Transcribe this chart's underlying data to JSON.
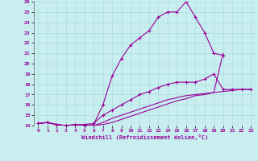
{
  "background_color": "#c8eef0",
  "line_color": "#990099",
  "grid_color": "#aadddd",
  "xlabel": "Windchill (Refroidissement éolien,°C)",
  "xlim": [
    -0.5,
    23.5
  ],
  "ylim": [
    14,
    26
  ],
  "yticks": [
    14,
    15,
    16,
    17,
    18,
    19,
    20,
    21,
    22,
    23,
    24,
    25,
    26
  ],
  "xticks": [
    0,
    1,
    2,
    3,
    4,
    5,
    6,
    7,
    8,
    9,
    10,
    11,
    12,
    13,
    14,
    15,
    16,
    17,
    18,
    19,
    20,
    21,
    22,
    23
  ],
  "series": [
    {
      "x": [
        0,
        1,
        2,
        3,
        4,
        5,
        6,
        7,
        8,
        9,
        10,
        11,
        12,
        13,
        14,
        15,
        16,
        17,
        18,
        19,
        20
      ],
      "y": [
        14.2,
        14.3,
        14.1,
        14.0,
        14.1,
        14.0,
        14.1,
        16.0,
        18.8,
        20.5,
        21.8,
        22.5,
        23.2,
        24.5,
        25.0,
        25.0,
        26.0,
        24.5,
        23.0,
        21.0,
        20.8
      ],
      "markers": true
    },
    {
      "x": [
        0,
        1,
        2,
        3,
        4,
        5,
        6,
        7,
        8,
        9,
        10,
        11,
        12,
        13,
        14,
        15,
        16,
        17,
        18,
        19,
        20,
        21,
        22,
        23
      ],
      "y": [
        14.2,
        14.3,
        14.1,
        14.0,
        14.1,
        14.1,
        14.2,
        15.0,
        15.5,
        16.0,
        16.5,
        17.0,
        17.3,
        17.7,
        18.0,
        18.2,
        18.2,
        18.2,
        18.5,
        19.0,
        17.5,
        17.5,
        17.5,
        17.5
      ],
      "markers": true
    },
    {
      "x": [
        0,
        1,
        2,
        3,
        4,
        5,
        6,
        7,
        8,
        9,
        10,
        11,
        12,
        13,
        14,
        15,
        16,
        17,
        18,
        19,
        20
      ],
      "y": [
        14.2,
        14.3,
        14.1,
        14.0,
        14.0,
        14.0,
        14.0,
        14.3,
        14.7,
        15.0,
        15.3,
        15.6,
        15.9,
        16.2,
        16.5,
        16.7,
        16.9,
        17.0,
        17.1,
        17.2,
        21.0
      ],
      "markers": false
    },
    {
      "x": [
        0,
        1,
        2,
        3,
        4,
        5,
        6,
        7,
        8,
        9,
        10,
        11,
        12,
        13,
        14,
        15,
        16,
        17,
        18,
        19,
        20,
        21,
        22,
        23
      ],
      "y": [
        14.2,
        14.3,
        14.1,
        14.0,
        14.0,
        14.0,
        14.0,
        14.1,
        14.3,
        14.6,
        14.9,
        15.2,
        15.5,
        15.8,
        16.1,
        16.4,
        16.6,
        16.9,
        17.0,
        17.2,
        17.3,
        17.4,
        17.5,
        17.5
      ],
      "markers": false
    }
  ]
}
